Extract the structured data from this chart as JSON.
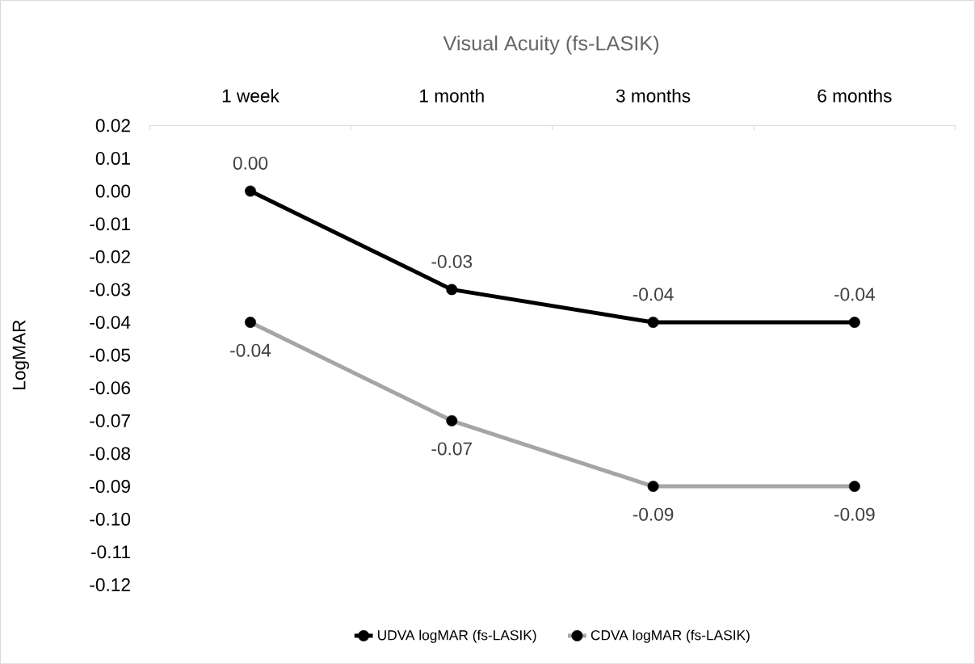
{
  "chart_data": {
    "type": "line",
    "title": "Visual Acuity (fs-LASIK)",
    "ylabel": "LogMAR",
    "categories": [
      "1 week",
      "1 month",
      "3 months",
      "6 months"
    ],
    "series": [
      {
        "name": "UDVA logMAR (fs-LASIK)",
        "color": "#000000",
        "values": [
          0,
          -0.03,
          -0.04,
          -0.04
        ],
        "value_labels": [
          "0.00",
          "-0.03",
          "-0.04",
          "-0.04"
        ]
      },
      {
        "name": "CDVA logMAR (fs-LASIK)",
        "color": "#a5a5a5",
        "values": [
          -0.04,
          -0.07,
          -0.09,
          -0.09
        ],
        "value_labels": [
          "-0.04",
          "-0.07",
          "-0.09",
          "-0.09"
        ]
      }
    ],
    "ylim": [
      -0.12,
      0.02
    ],
    "yticks": [
      -0.12,
      -0.11,
      {
        "value": -0.1,
        "label": "-0.10"
      },
      -0.09,
      -0.08,
      -0.07,
      -0.06,
      -0.05,
      -0.04,
      -0.03,
      -0.02,
      -0.01,
      {
        "value": 0,
        "label": "0.00"
      },
      0.01,
      0.02
    ],
    "legend": "bottom",
    "marker": "circle",
    "line_style": "solid"
  }
}
